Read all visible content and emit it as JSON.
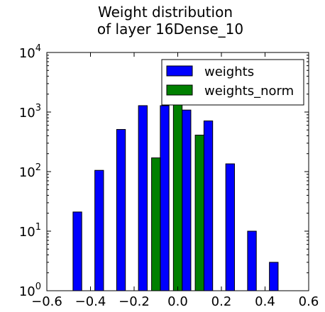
{
  "chart_data": {
    "type": "bar",
    "title": [
      "Weight distribution",
      "of layer 16Dense_10"
    ],
    "xlabel": "",
    "ylabel": "",
    "xlim": [
      -0.6,
      0.6
    ],
    "ylim": [
      1,
      10000
    ],
    "yscale": "log",
    "grid": false,
    "legend_position": "top-right",
    "x_ticks": [
      {
        "value": -0.6,
        "label": "−0.6"
      },
      {
        "value": -0.4,
        "label": "−0.4"
      },
      {
        "value": -0.2,
        "label": "−0.2"
      },
      {
        "value": 0.0,
        "label": "0.0"
      },
      {
        "value": 0.2,
        "label": "0.2"
      },
      {
        "value": 0.4,
        "label": "0.4"
      },
      {
        "value": 0.6,
        "label": "0.6"
      }
    ],
    "y_ticks": [
      {
        "value": 1,
        "base": "10",
        "exp": "0"
      },
      {
        "value": 10,
        "base": "10",
        "exp": "1"
      },
      {
        "value": 100,
        "base": "10",
        "exp": "2"
      },
      {
        "value": 1000,
        "base": "10",
        "exp": "3"
      },
      {
        "value": 10000,
        "base": "10",
        "exp": "4"
      }
    ],
    "series": [
      {
        "name": "weights",
        "color": "#0000ff",
        "bars": [
          {
            "x0": -0.48,
            "x1": -0.44,
            "value": 21
          },
          {
            "x0": -0.38,
            "x1": -0.34,
            "value": 105
          },
          {
            "x0": -0.28,
            "x1": -0.24,
            "value": 510
          },
          {
            "x0": -0.18,
            "x1": -0.14,
            "value": 1280
          },
          {
            "x0": -0.08,
            "x1": -0.04,
            "value": 1280
          },
          {
            "x0": 0.02,
            "x1": 0.06,
            "value": 1080
          },
          {
            "x0": 0.12,
            "x1": 0.16,
            "value": 710
          },
          {
            "x0": 0.22,
            "x1": 0.26,
            "value": 135
          },
          {
            "x0": 0.32,
            "x1": 0.36,
            "value": 10
          },
          {
            "x0": 0.42,
            "x1": 0.46,
            "value": 3
          }
        ]
      },
      {
        "name": "weights_norm",
        "color": "#008000",
        "bars": [
          {
            "x0": -0.12,
            "x1": -0.08,
            "value": 170
          },
          {
            "x0": -0.02,
            "x1": 0.02,
            "value": 1350
          },
          {
            "x0": 0.08,
            "x1": 0.12,
            "value": 410
          }
        ]
      }
    ]
  }
}
